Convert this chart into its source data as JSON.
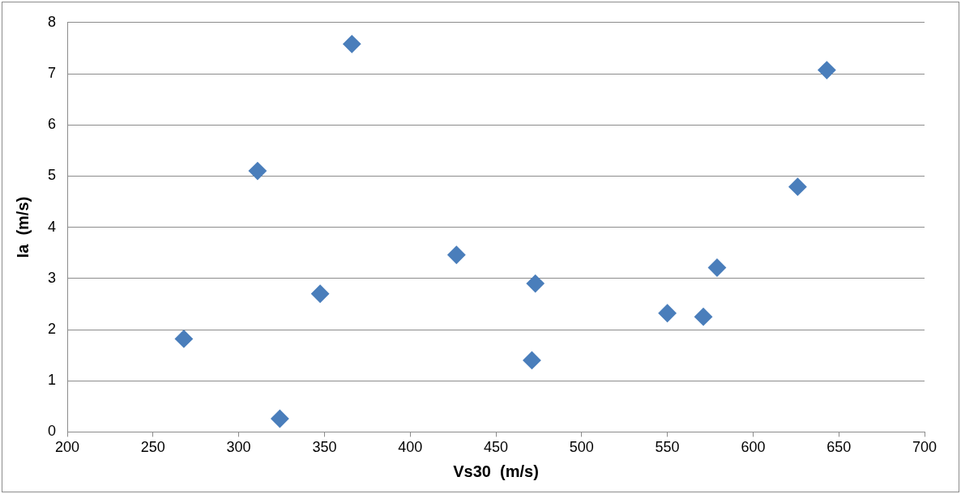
{
  "chart_data": {
    "type": "scatter",
    "xlabel": "Vs30  (m/s)",
    "ylabel": "Ia  (m/s)",
    "x": [
      268,
      311,
      324,
      347.5,
      366,
      427,
      471,
      473,
      550,
      571,
      579,
      626,
      643
    ],
    "series": [
      {
        "color": "#4a7ebb",
        "values": [
          1.82,
          5.1,
          0.26,
          2.7,
          7.58,
          3.46,
          1.4,
          2.9,
          2.32,
          2.25,
          3.21,
          4.79,
          7.07
        ]
      }
    ],
    "xlim": [
      200,
      700
    ],
    "xticks": [
      200,
      250,
      300,
      350,
      400,
      450,
      500,
      550,
      600,
      650,
      700
    ],
    "ylim": [
      0,
      8
    ],
    "yticks": [
      0,
      1,
      2,
      3,
      4,
      5,
      6,
      7,
      8
    ],
    "grid": "y",
    "legend": false,
    "marker": "diamond"
  }
}
